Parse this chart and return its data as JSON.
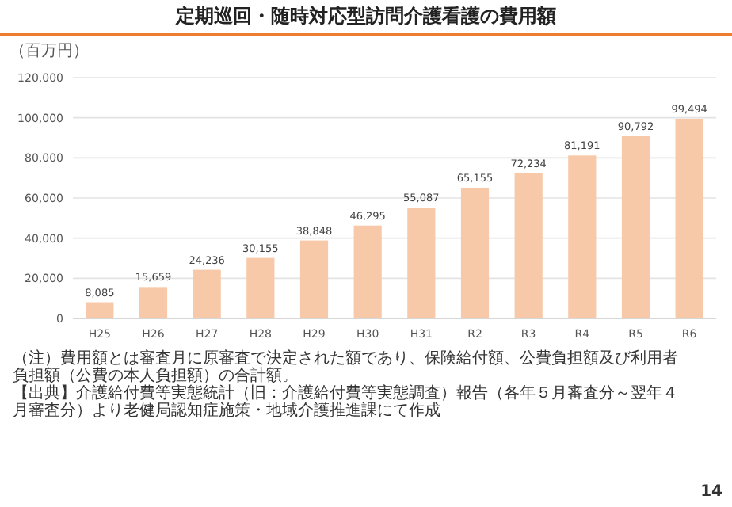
{
  "chart_data": {
    "type": "bar",
    "title": "定期巡回・随時対応型訪問介護看護の費用額",
    "ylabel": "（百万円）",
    "categories": [
      "H25",
      "H26",
      "H27",
      "H28",
      "H29",
      "H30",
      "H31",
      "R2",
      "R3",
      "R4",
      "R5",
      "R6"
    ],
    "values": [
      8085,
      15659,
      24236,
      30155,
      38848,
      46295,
      55087,
      65155,
      72234,
      81191,
      90792,
      99494
    ],
    "color": "#f8c9a8",
    "ylim": [
      0,
      120000
    ],
    "yticks": [
      {
        "value": 0,
        "label": "0"
      },
      {
        "value": 20000,
        "label": "20,000"
      },
      {
        "value": 40000,
        "label": "40,000"
      },
      {
        "value": 60000,
        "label": "60,000"
      },
      {
        "value": 80000,
        "label": "80,000"
      },
      {
        "value": 100000,
        "label": "100,000"
      },
      {
        "value": 120000,
        "label": "120,000"
      }
    ],
    "value_labels": [
      "8,085",
      "15,659",
      "24,236",
      "30,155",
      "38,848",
      "46,295",
      "55,087",
      "65,155",
      "72,234",
      "81,191",
      "90,792",
      "99,494"
    ],
    "grid": "y",
    "annotations": [
      "（注）費用額とは審査月に原審査で決定された額であり、保険給付額、公費負担額及び利用者負担額（公費の本人負担額）の合計額。",
      "【出典】介護給付費等実態統計（旧：介護給付費等実態調査）報告（各年５月審査分～翌年４月審査分）より老健局認知症施策・地域介護推進課にて作成",
      "14"
    ]
  }
}
